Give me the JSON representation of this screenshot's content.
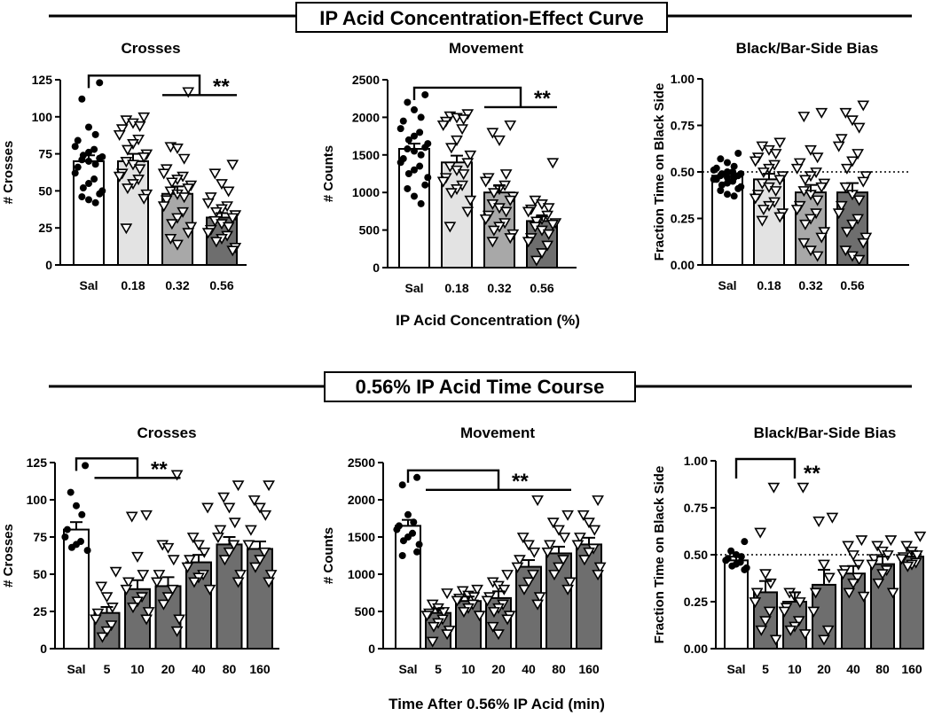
{
  "section1": {
    "title": "IP Acid Concentration-Effect Curve",
    "xlabel": "IP Acid Concentration (%)"
  },
  "section2": {
    "title": "0.56% IP Acid Time Course",
    "xlabel": "Time After 0.56% IP Acid (min)"
  },
  "significance_label": "**",
  "chart_data": [
    {
      "id": "conc_crosses",
      "type": "bar",
      "title": "Crosses",
      "ylabel": "# Crosses",
      "categories": [
        "Sal",
        "0.18",
        "0.32",
        "0.56"
      ],
      "values": [
        70,
        70,
        48,
        32
      ],
      "sem": [
        4,
        5,
        5,
        3
      ],
      "ylim": [
        0,
        125
      ],
      "yticks": [
        0,
        25,
        50,
        75,
        100,
        125
      ],
      "bar_colors": [
        "#ffffff",
        "#e3e3e3",
        "#a8a8a8",
        "#6e6e6e"
      ],
      "points": [
        [
          123,
          112,
          93,
          88,
          84,
          80,
          78,
          76,
          74,
          73,
          72,
          71,
          70,
          68,
          66,
          62,
          58,
          55,
          52,
          50,
          48,
          46,
          44,
          42
        ],
        [
          100,
          98,
          96,
          94,
          92,
          88,
          85,
          82,
          78,
          75,
          73,
          70,
          68,
          65,
          62,
          60,
          58,
          55,
          52,
          48,
          45,
          25
        ],
        [
          117,
          80,
          79,
          72,
          65,
          62,
          60,
          58,
          56,
          54,
          52,
          50,
          48,
          46,
          44,
          40,
          36,
          32,
          28,
          26,
          22,
          18,
          14
        ],
        [
          68,
          62,
          55,
          50,
          46,
          42,
          40,
          38,
          36,
          34,
          32,
          30,
          28,
          26,
          24,
          22,
          20,
          18,
          16,
          12,
          10
        ]
      ],
      "point_markers": [
        "circle",
        "triangle",
        "triangle",
        "triangle"
      ],
      "significance": {
        "from": 0,
        "to_group": [
          2,
          3
        ],
        "label": "**"
      },
      "reference_line": null
    },
    {
      "id": "conc_movement",
      "type": "bar",
      "title": "Movement",
      "ylabel": "# Counts",
      "categories": [
        "Sal",
        "0.18",
        "0.32",
        "0.56"
      ],
      "values": [
        1580,
        1400,
        1000,
        620
      ],
      "sem": [
        70,
        90,
        90,
        60
      ],
      "ylim": [
        0,
        2500
      ],
      "yticks": [
        0,
        500,
        1000,
        1500,
        2000,
        2500
      ],
      "bar_colors": [
        "#ffffff",
        "#e3e3e3",
        "#a8a8a8",
        "#6e6e6e"
      ],
      "points": [
        [
          2300,
          2200,
          2100,
          2000,
          1950,
          1850,
          1800,
          1750,
          1700,
          1650,
          1600,
          1580,
          1550,
          1500,
          1450,
          1400,
          1350,
          1300,
          1250,
          1200,
          1100,
          1050,
          950,
          850
        ],
        [
          2050,
          2020,
          2000,
          1980,
          1950,
          1900,
          1850,
          1700,
          1600,
          1500,
          1400,
          1350,
          1300,
          1250,
          1200,
          1150,
          1100,
          1050,
          1000,
          900,
          750,
          550
        ],
        [
          1900,
          1800,
          1700,
          1250,
          1200,
          1150,
          1100,
          1050,
          1000,
          950,
          900,
          850,
          800,
          750,
          700,
          650,
          600,
          550,
          500,
          450,
          400,
          350
        ],
        [
          1400,
          900,
          850,
          800,
          780,
          750,
          700,
          650,
          620,
          600,
          580,
          550,
          500,
          450,
          400,
          350,
          300,
          200,
          100
        ]
      ],
      "point_markers": [
        "circle",
        "triangle",
        "triangle",
        "triangle"
      ],
      "significance": {
        "from": 0,
        "to_group": [
          2,
          3
        ],
        "label": "**"
      },
      "reference_line": null
    },
    {
      "id": "conc_bias",
      "type": "bar",
      "title": "Black/Bar-Side Bias",
      "ylabel": "Fraction Time on Black Side",
      "categories": [
        "Sal",
        "0.18",
        "0.32",
        "0.56"
      ],
      "values": [
        0.48,
        0.46,
        0.39,
        0.39
      ],
      "sem": [
        0.01,
        0.03,
        0.04,
        0.05
      ],
      "ylim": [
        0,
        1
      ],
      "yticks": [
        0,
        0.25,
        0.5,
        0.75,
        1.0
      ],
      "ytick_labels": [
        "0.00",
        "0.25",
        "0.50",
        "0.75",
        "1.00"
      ],
      "bar_colors": [
        "#ffffff",
        "#e3e3e3",
        "#a8a8a8",
        "#6e6e6e"
      ],
      "points": [
        [
          0.6,
          0.57,
          0.55,
          0.53,
          0.52,
          0.51,
          0.5,
          0.5,
          0.49,
          0.49,
          0.48,
          0.48,
          0.47,
          0.47,
          0.46,
          0.46,
          0.45,
          0.44,
          0.43,
          0.42,
          0.41,
          0.4,
          0.38,
          0.37
        ],
        [
          0.66,
          0.64,
          0.62,
          0.6,
          0.58,
          0.56,
          0.54,
          0.52,
          0.5,
          0.48,
          0.46,
          0.44,
          0.42,
          0.4,
          0.38,
          0.36,
          0.34,
          0.32,
          0.3,
          0.28,
          0.26,
          0.24
        ],
        [
          0.82,
          0.8,
          0.62,
          0.58,
          0.55,
          0.52,
          0.5,
          0.48,
          0.46,
          0.44,
          0.42,
          0.4,
          0.38,
          0.35,
          0.32,
          0.3,
          0.28,
          0.25,
          0.22,
          0.18,
          0.15,
          0.12,
          0.08,
          0.05
        ],
        [
          0.86,
          0.82,
          0.78,
          0.74,
          0.68,
          0.64,
          0.6,
          0.56,
          0.52,
          0.48,
          0.45,
          0.42,
          0.38,
          0.35,
          0.32,
          0.28,
          0.25,
          0.22,
          0.18,
          0.15,
          0.12,
          0.08,
          0.05,
          0.03
        ]
      ],
      "point_markers": [
        "circle",
        "triangle",
        "triangle",
        "triangle"
      ],
      "significance": null,
      "reference_line": 0.5
    },
    {
      "id": "time_crosses",
      "type": "bar",
      "title": "Crosses",
      "ylabel": "# Crosses",
      "categories": [
        "Sal",
        "5",
        "10",
        "20",
        "40",
        "80",
        "160"
      ],
      "values": [
        80,
        24,
        40,
        42,
        58,
        70,
        67
      ],
      "sem": [
        5,
        4,
        6,
        6,
        5,
        5,
        5
      ],
      "ylim": [
        0,
        125
      ],
      "yticks": [
        0,
        25,
        50,
        75,
        100,
        125
      ],
      "bar_colors": [
        "#ffffff",
        "#6e6e6e",
        "#6e6e6e",
        "#6e6e6e",
        "#6e6e6e",
        "#6e6e6e",
        "#6e6e6e"
      ],
      "points": [
        [
          123,
          105,
          96,
          90,
          80,
          75,
          72,
          70,
          68,
          66
        ],
        [
          52,
          42,
          35,
          28,
          24,
          20,
          16,
          12,
          8
        ],
        [
          90,
          89,
          62,
          50,
          45,
          40,
          35,
          32,
          28,
          25,
          20
        ],
        [
          117,
          70,
          68,
          60,
          50,
          45,
          40,
          35,
          30,
          20,
          12
        ],
        [
          95,
          75,
          70,
          65,
          60,
          55,
          50,
          48,
          45,
          40
        ],
        [
          110,
          102,
          95,
          85,
          80,
          75,
          70,
          65,
          60,
          50,
          45
        ],
        [
          110,
          100,
          95,
          90,
          80,
          70,
          65,
          60,
          55,
          50,
          45
        ]
      ],
      "point_markers": [
        "circle",
        "triangle",
        "triangle",
        "triangle",
        "triangle",
        "triangle",
        "triangle"
      ],
      "significance": {
        "from": 0,
        "to_group": [
          1,
          3
        ],
        "label": "**"
      },
      "reference_line": null
    },
    {
      "id": "time_movement",
      "type": "bar",
      "title": "Movement",
      "ylabel": "# Counts",
      "categories": [
        "Sal",
        "5",
        "10",
        "20",
        "40",
        "80",
        "160"
      ],
      "values": [
        1650,
        480,
        640,
        680,
        1100,
        1280,
        1400
      ],
      "sem": [
        80,
        60,
        60,
        90,
        90,
        90,
        90
      ],
      "ylim": [
        0,
        2500
      ],
      "yticks": [
        0,
        500,
        1000,
        1500,
        2000,
        2500
      ],
      "bar_colors": [
        "#ffffff",
        "#6e6e6e",
        "#6e6e6e",
        "#6e6e6e",
        "#6e6e6e",
        "#6e6e6e",
        "#6e6e6e"
      ],
      "points": [
        [
          2300,
          2200,
          1800,
          1700,
          1650,
          1600,
          1550,
          1500,
          1450,
          1400,
          1300,
          1250
        ],
        [
          750,
          600,
          550,
          500,
          480,
          450,
          400,
          350,
          300,
          250,
          200,
          100
        ],
        [
          800,
          780,
          720,
          700,
          680,
          650,
          600,
          550,
          500,
          450
        ],
        [
          1000,
          900,
          850,
          800,
          700,
          650,
          600,
          550,
          500,
          450,
          400,
          300,
          200
        ],
        [
          2000,
          1500,
          1400,
          1300,
          1200,
          1100,
          1000,
          900,
          800,
          700,
          600
        ],
        [
          1800,
          1700,
          1600,
          1500,
          1400,
          1300,
          1200,
          1100,
          1000,
          900,
          800
        ],
        [
          2000,
          1800,
          1700,
          1600,
          1500,
          1400,
          1350,
          1300,
          1200,
          1100,
          1000
        ]
      ],
      "point_markers": [
        "circle",
        "triangle",
        "triangle",
        "triangle",
        "triangle",
        "triangle",
        "triangle"
      ],
      "significance": {
        "from": 0,
        "to_group": [
          1,
          5
        ],
        "label": "**"
      },
      "reference_line": null
    },
    {
      "id": "time_bias",
      "type": "bar",
      "title": "Black/Bar-Side Bias",
      "ylabel": "Fraction Time on Black Side",
      "categories": [
        "Sal",
        "5",
        "10",
        "20",
        "40",
        "80",
        "160"
      ],
      "values": [
        0.47,
        0.3,
        0.25,
        0.34,
        0.4,
        0.45,
        0.49
      ],
      "sem": [
        0.02,
        0.06,
        0.05,
        0.08,
        0.04,
        0.04,
        0.03
      ],
      "ylim": [
        0,
        1
      ],
      "yticks": [
        0,
        0.25,
        0.5,
        0.75,
        1.0
      ],
      "ytick_labels": [
        "0.00",
        "0.25",
        "0.50",
        "0.75",
        "1.00"
      ],
      "bar_colors": [
        "#ffffff",
        "#6e6e6e",
        "#6e6e6e",
        "#6e6e6e",
        "#6e6e6e",
        "#6e6e6e",
        "#6e6e6e"
      ],
      "points": [
        [
          0.57,
          0.52,
          0.5,
          0.49,
          0.48,
          0.47,
          0.46,
          0.45,
          0.44,
          0.43,
          0.42
        ],
        [
          0.86,
          0.62,
          0.4,
          0.35,
          0.3,
          0.25,
          0.2,
          0.15,
          0.1,
          0.05
        ],
        [
          0.86,
          0.3,
          0.28,
          0.25,
          0.22,
          0.2,
          0.15,
          0.12,
          0.1,
          0.08
        ],
        [
          0.7,
          0.68,
          0.45,
          0.38,
          0.3,
          0.2,
          0.1,
          0.05
        ],
        [
          0.58,
          0.55,
          0.5,
          0.45,
          0.42,
          0.4,
          0.38,
          0.35,
          0.3,
          0.28
        ],
        [
          0.58,
          0.55,
          0.52,
          0.5,
          0.48,
          0.45,
          0.42,
          0.4,
          0.35,
          0.3
        ],
        [
          0.6,
          0.55,
          0.52,
          0.5,
          0.49,
          0.48,
          0.46,
          0.45,
          0.44
        ]
      ],
      "point_markers": [
        "circle",
        "triangle",
        "triangle",
        "triangle",
        "triangle",
        "triangle",
        "triangle"
      ],
      "significance": {
        "from": 0,
        "to": 2,
        "label": "**"
      },
      "reference_line": 0.5
    }
  ]
}
